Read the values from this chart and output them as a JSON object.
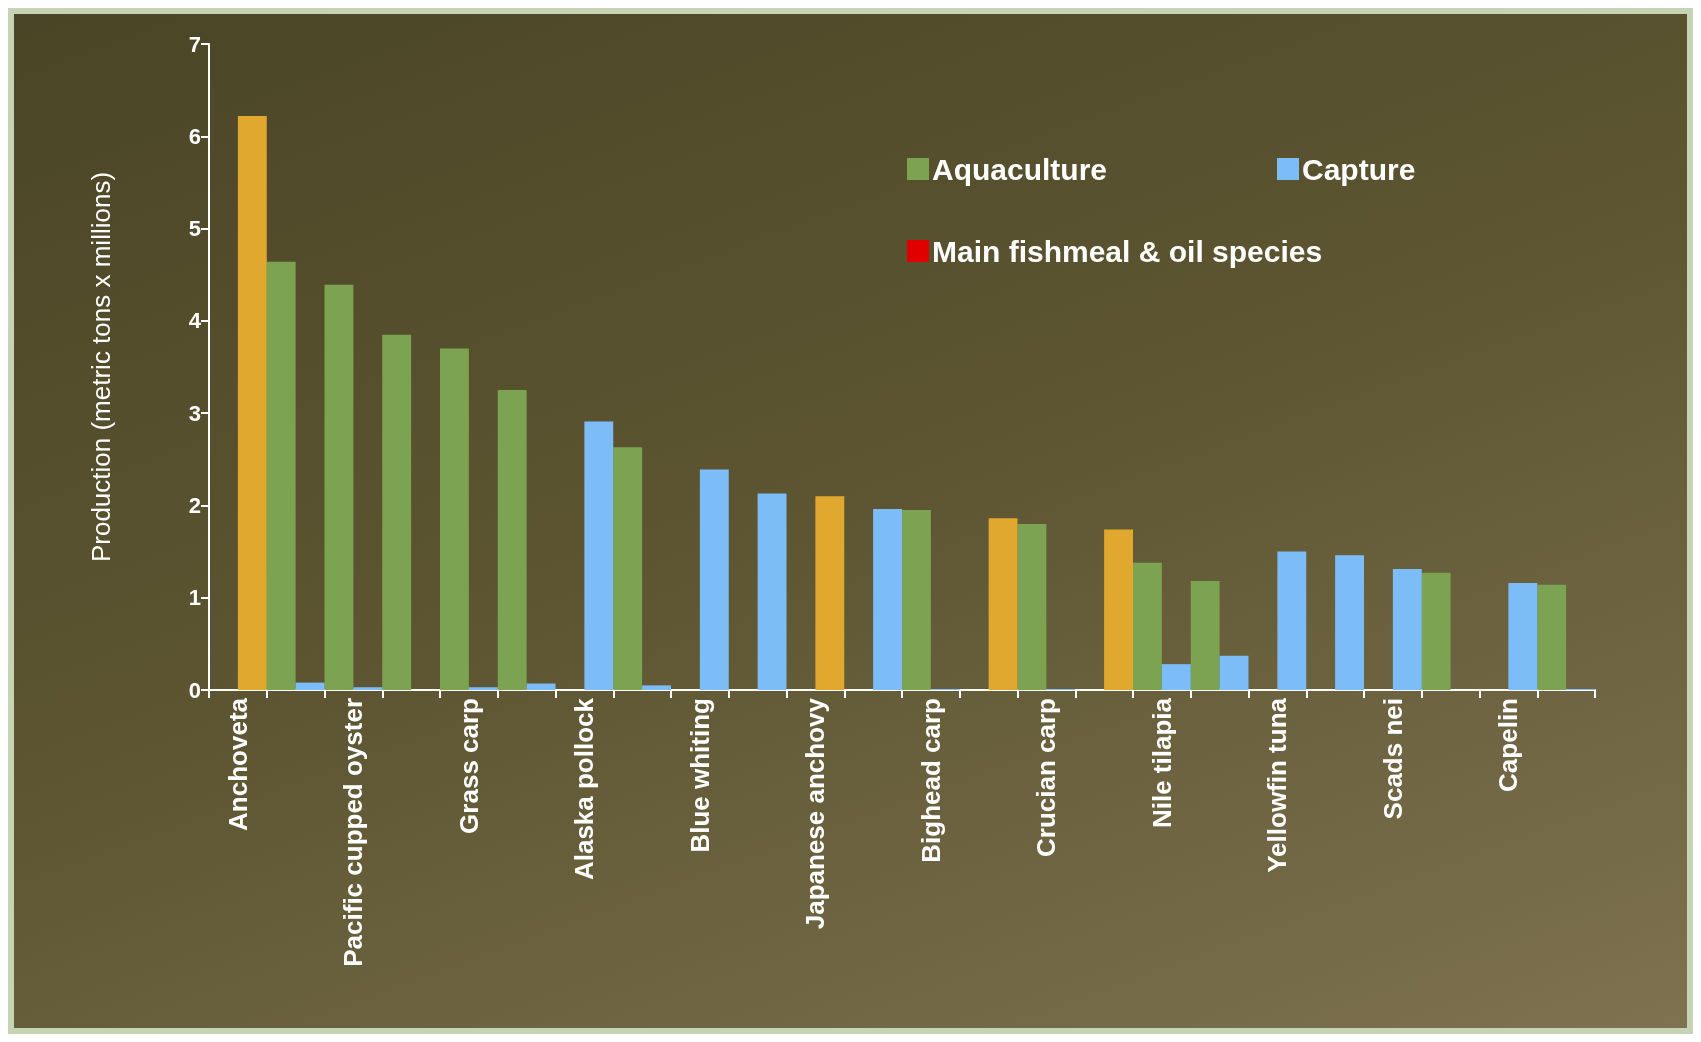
{
  "chart_data": {
    "type": "bar",
    "ylabel": "Production (metric tons x millions)",
    "categories": [
      "Anchoveta",
      null,
      "Pacific cupped oyster",
      null,
      "Grass carp",
      null,
      "Alaska pollock",
      null,
      "Blue whiting",
      null,
      "Japanese anchovy",
      null,
      "Bighead carp",
      null,
      "Crucian carp",
      null,
      "Nile tilapia",
      null,
      "Yellowfin tuna",
      null,
      "Scads nei",
      null,
      "Capelin",
      null
    ],
    "series": [
      {
        "name": "Aquaculture",
        "color": "#7ba351",
        "values": [
          null,
          4.64,
          4.39,
          3.85,
          3.7,
          3.25,
          null,
          2.63,
          null,
          null,
          null,
          null,
          1.95,
          null,
          1.8,
          null,
          1.38,
          1.18,
          null,
          null,
          null,
          1.27,
          null,
          1.14
        ]
      },
      {
        "name": "Capture",
        "color": "#7dbdf7",
        "colors": [
          "#e0a82e",
          "#7dbdf7",
          "#7dbdf7",
          "#7dbdf7",
          "#7dbdf7",
          "#7dbdf7",
          "#7dbdf7",
          "#7dbdf7",
          "#7dbdf7",
          "#7dbdf7",
          "#e0a82e",
          "#7dbdf7",
          "#7dbdf7",
          "#e0a82e",
          "#7dbdf7",
          "#e0a82e",
          "#7dbdf7",
          "#7dbdf7",
          "#7dbdf7",
          "#7dbdf7",
          "#7dbdf7",
          "#7dbdf7",
          "#7dbdf7",
          "#7dbdf7"
        ],
        "values": [
          6.22,
          0.08,
          0.03,
          null,
          0.03,
          0.07,
          2.91,
          0.05,
          2.39,
          2.13,
          2.1,
          1.96,
          0.01,
          1.86,
          0.01,
          1.74,
          0.28,
          0.37,
          1.5,
          1.46,
          1.31,
          null,
          1.16,
          0.01
        ]
      },
      {
        "name": "Main fishmeal & oil species",
        "color": "#e00000",
        "values": [
          null,
          null,
          null,
          null,
          null,
          null,
          null,
          null,
          null,
          null,
          null,
          null,
          null,
          null,
          null,
          null,
          null,
          null,
          null,
          null,
          null,
          null,
          null,
          null
        ]
      }
    ],
    "ylim": [
      0,
      7
    ],
    "yticks": [
      0,
      1,
      2,
      3,
      4,
      5,
      6,
      7
    ],
    "grid": false,
    "legend": "top right"
  }
}
